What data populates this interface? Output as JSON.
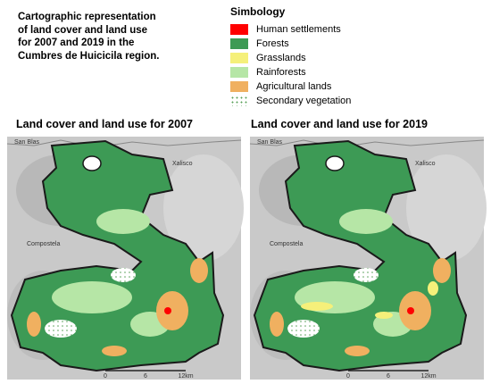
{
  "title": [
    "Cartographic representation",
    "of land cover and land use",
    "for 2007 and 2019 in the",
    "Cumbres de Huicicila region."
  ],
  "legend": {
    "title": "Simbology",
    "items": [
      {
        "label": "Human settlements",
        "color": "#ff0000"
      },
      {
        "label": "Forests",
        "color": "#3d9a55"
      },
      {
        "label": "Grasslands",
        "color": "#f5f07a"
      },
      {
        "label": "Rainforests",
        "color": "#b6e6a6"
      },
      {
        "label": "Agricultural lands",
        "color": "#f0b060"
      },
      {
        "label": "Secondary vegetation",
        "color": "#ffffff",
        "pattern": "dots"
      }
    ]
  },
  "maps": [
    {
      "title": "Land cover and land use for 2007",
      "places": [
        "San Blas",
        "Xalisco",
        "Compostela"
      ],
      "scale": [
        "0",
        "6",
        "12km"
      ],
      "grasslands": false
    },
    {
      "title": "Land cover and land use for 2019",
      "places": [
        "San Blas",
        "Xalisco",
        "Compostela"
      ],
      "scale": [
        "0",
        "6",
        "12km"
      ],
      "grasslands": true
    }
  ]
}
